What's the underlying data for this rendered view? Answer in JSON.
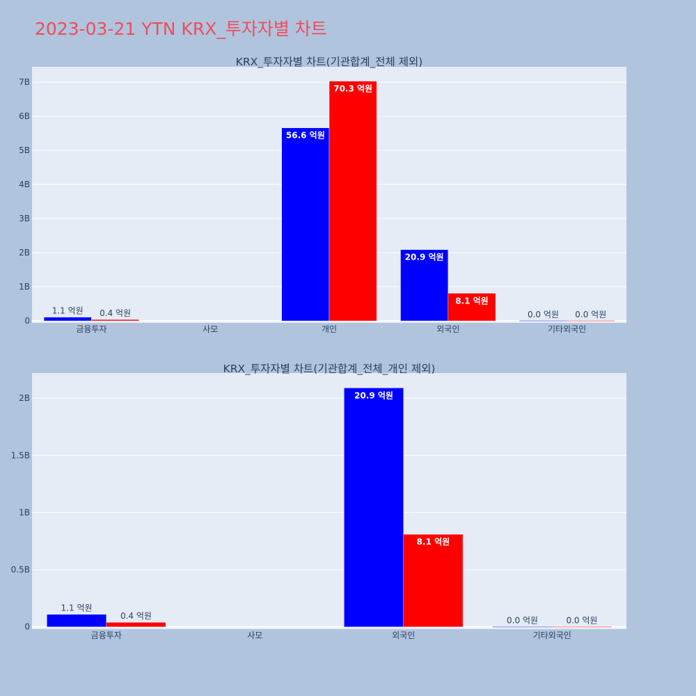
{
  "page": {
    "title": "2023-03-21 YTN KRX_투자자별 차트",
    "background": "#b0c4de",
    "title_color": "#ef4d5a",
    "plot_bg": "#e5ecf6",
    "grid_color": "#ffffff",
    "text_color": "#2a3f5f"
  },
  "chart_data": [
    {
      "type": "bar",
      "title": "KRX_투자자별 차트(기관합계_전체 제외)",
      "categories": [
        "금융투자",
        "사모",
        "개인",
        "외국인",
        "기타외국인"
      ],
      "ylim": [
        -60000000,
        7450000000
      ],
      "yticks": [
        0,
        1000000000,
        2000000000,
        3000000000,
        4000000000,
        5000000000,
        6000000000,
        7000000000
      ],
      "yticklabels": [
        "0",
        "1B",
        "2B",
        "3B",
        "4B",
        "5B",
        "6B",
        "7B"
      ],
      "grid": true,
      "series": [
        {
          "color": "#0000ff",
          "values": [
            110000000,
            0,
            5660000000,
            2090000000,
            0
          ],
          "labels": [
            "1.1 억원",
            "",
            "56.6 억원",
            "20.9 억원",
            "0.0 억원"
          ]
        },
        {
          "color": "#ff0000",
          "values": [
            40000000,
            0,
            7030000000,
            810000000,
            0
          ],
          "labels": [
            "0.4 억원",
            "",
            "70.3 억원",
            "8.1 억원",
            "0.0 억원"
          ]
        }
      ]
    },
    {
      "type": "bar",
      "title": "KRX_투자자별 차트(기관합계_전체_개인 제외)",
      "categories": [
        "금융투자",
        "사모",
        "외국인",
        "기타외국인"
      ],
      "ylim": [
        -20000000,
        2220000000
      ],
      "yticks": [
        0,
        500000000,
        1000000000,
        1500000000,
        2000000000
      ],
      "yticklabels": [
        "0",
        "0.5B",
        "1B",
        "1.5B",
        "2B"
      ],
      "grid": true,
      "series": [
        {
          "color": "#0000ff",
          "values": [
            110000000,
            0,
            2090000000,
            0
          ],
          "labels": [
            "1.1 억원",
            "",
            "20.9 억원",
            "0.0 억원"
          ]
        },
        {
          "color": "#ff0000",
          "values": [
            40000000,
            0,
            810000000,
            0
          ],
          "labels": [
            "0.4 억원",
            "",
            "8.1 억원",
            "0.0 억원"
          ]
        }
      ]
    }
  ]
}
